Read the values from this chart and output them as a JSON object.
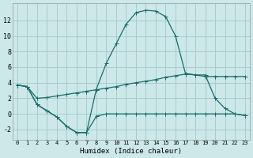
{
  "xlabel": "Humidex (Indice chaleur)",
  "bg_color": "#cce8e8",
  "grid_color": "#aacccc",
  "line_color": "#1a6b6b",
  "x_ticks": [
    0,
    1,
    2,
    3,
    4,
    5,
    6,
    7,
    8,
    9,
    10,
    11,
    12,
    13,
    14,
    15,
    16,
    17,
    18,
    19,
    20,
    21,
    22,
    23
  ],
  "y_ticks": [
    -2,
    0,
    2,
    4,
    6,
    8,
    10,
    12
  ],
  "xlim": [
    -0.5,
    23.5
  ],
  "ylim": [
    -3.3,
    14.2
  ],
  "curve_arch_x": [
    0,
    1,
    2,
    3,
    4,
    5,
    6,
    7,
    8,
    9,
    10,
    11,
    12,
    13,
    14,
    15,
    16,
    17,
    18,
    19,
    20,
    21,
    22,
    23
  ],
  "curve_arch_y": [
    3.7,
    3.5,
    1.2,
    0.4,
    -0.4,
    -1.6,
    -2.4,
    -2.4,
    3.2,
    6.5,
    9.0,
    11.5,
    13.0,
    13.3,
    13.2,
    12.5,
    10.0,
    5.2,
    5.0,
    5.0,
    2.0,
    0.7,
    0.0,
    -0.2
  ],
  "curve_flat_x": [
    0,
    1,
    2,
    3,
    4,
    5,
    6,
    7,
    8,
    9,
    10,
    11,
    12,
    13,
    14,
    15,
    16,
    17,
    18,
    19,
    20,
    21,
    22,
    23
  ],
  "curve_flat_y": [
    3.7,
    3.5,
    2.0,
    2.1,
    2.3,
    2.5,
    2.7,
    2.9,
    3.1,
    3.3,
    3.5,
    3.8,
    4.0,
    4.2,
    4.4,
    4.7,
    4.9,
    5.1,
    5.0,
    4.8,
    4.8,
    4.8,
    4.8,
    4.8
  ],
  "curve_dip_x": [
    0,
    1,
    2,
    3,
    4,
    5,
    6,
    7,
    8,
    9,
    10,
    11,
    12,
    13,
    14,
    15,
    16,
    17,
    18,
    19,
    20,
    21,
    22,
    23
  ],
  "curve_dip_y": [
    3.7,
    3.5,
    1.2,
    0.4,
    -0.4,
    -1.6,
    -2.4,
    -2.4,
    -0.3,
    0.0,
    0.0,
    0.0,
    0.0,
    0.0,
    0.0,
    0.0,
    0.0,
    0.0,
    0.0,
    0.0,
    0.0,
    0.0,
    0.0,
    -0.2
  ]
}
